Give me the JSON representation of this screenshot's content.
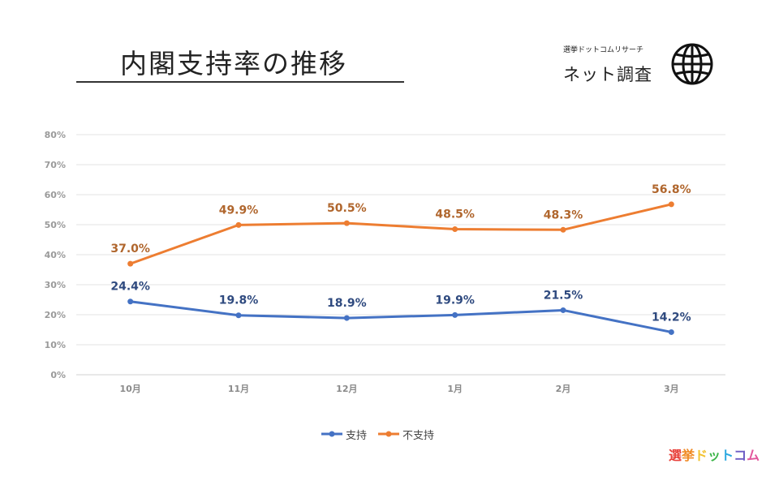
{
  "header": {
    "title": "内閣支持率の推移",
    "brand_sub": "選挙ドットコムリサーチ",
    "brand_main": "ネット調査",
    "globe_icon": "globe-icon"
  },
  "chart_data": {
    "type": "line",
    "categories": [
      "10月",
      "11月",
      "12月",
      "1月",
      "2月",
      "3月"
    ],
    "series": [
      {
        "name": "支持",
        "color": "#4472C4",
        "label_color": "#2F4A7F",
        "values": [
          24.4,
          19.8,
          18.9,
          19.9,
          21.5,
          14.2
        ]
      },
      {
        "name": "不支持",
        "color": "#ED7D31",
        "label_color": "#B0662D",
        "values": [
          37.0,
          49.9,
          50.5,
          48.5,
          48.3,
          56.8
        ]
      }
    ],
    "data_labels": [
      [
        "24.4%",
        "19.8%",
        "18.9%",
        "19.9%",
        "21.5%",
        "14.2%"
      ],
      [
        "37.0%",
        "49.9%",
        "50.5%",
        "48.5%",
        "48.3%",
        "56.8%"
      ]
    ],
    "y_ticks": [
      0,
      10,
      20,
      30,
      40,
      50,
      60,
      70,
      80
    ],
    "y_tick_labels": [
      "0%",
      "10%",
      "20%",
      "30%",
      "40%",
      "50%",
      "60%",
      "70%",
      "80%"
    ],
    "ylim": [
      0,
      80
    ],
    "grid": true,
    "legend_position": "bottom"
  },
  "logo": {
    "text": "選挙ドットコム",
    "colors": [
      "#E8403A",
      "#F08A24",
      "#F2C230",
      "#3DB54A",
      "#2BA8E0",
      "#6C5BC4",
      "#E2569C"
    ]
  }
}
